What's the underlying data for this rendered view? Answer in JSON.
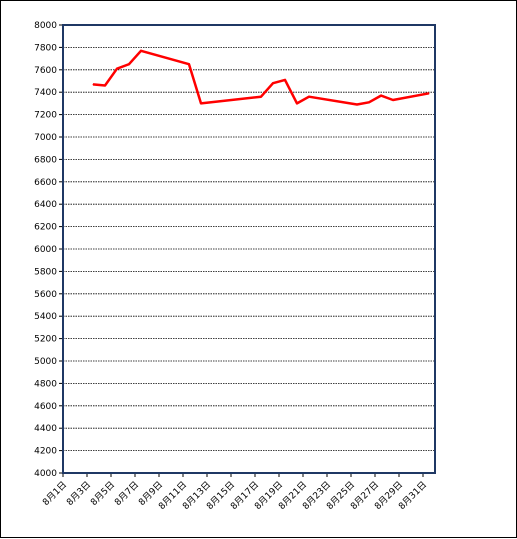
{
  "chart_data": {
    "type": "line",
    "title": "",
    "xlabel": "",
    "ylabel": "",
    "ylim": [
      4000,
      8000
    ],
    "y_ticks": [
      4000,
      4200,
      4400,
      4600,
      4800,
      5000,
      5200,
      5400,
      5600,
      5800,
      6000,
      6200,
      6400,
      6600,
      6800,
      7000,
      7200,
      7400,
      7600,
      7800,
      8000
    ],
    "x_ticks": [
      {
        "day": 1,
        "label": "8月1日"
      },
      {
        "day": 3,
        "label": "8月3日"
      },
      {
        "day": 5,
        "label": "8月5日"
      },
      {
        "day": 7,
        "label": "8月7日"
      },
      {
        "day": 9,
        "label": "8月9日"
      },
      {
        "day": 11,
        "label": "8月11日"
      },
      {
        "day": 13,
        "label": "8月13日"
      },
      {
        "day": 15,
        "label": "8月15日"
      },
      {
        "day": 17,
        "label": "8月17日"
      },
      {
        "day": 19,
        "label": "8月19日"
      },
      {
        "day": 21,
        "label": "8月21日"
      },
      {
        "day": 23,
        "label": "8月23日"
      },
      {
        "day": 25,
        "label": "8月25日"
      },
      {
        "day": 27,
        "label": "8月27日"
      },
      {
        "day": 29,
        "label": "8月29日"
      },
      {
        "day": 31,
        "label": "8月31日"
      }
    ],
    "xlim": [
      1,
      32
    ],
    "grid": true,
    "series": [
      {
        "color": "#ff0000",
        "points": [
          {
            "day": 3.5,
            "value": 7470
          },
          {
            "day": 4.5,
            "value": 7460
          },
          {
            "day": 5.5,
            "value": 7610
          },
          {
            "day": 6.5,
            "value": 7650
          },
          {
            "day": 7.5,
            "value": 7770
          },
          {
            "day": 11.5,
            "value": 7650
          },
          {
            "day": 12.5,
            "value": 7300
          },
          {
            "day": 17.5,
            "value": 7360
          },
          {
            "day": 18.5,
            "value": 7480
          },
          {
            "day": 19.5,
            "value": 7510
          },
          {
            "day": 20.5,
            "value": 7300
          },
          {
            "day": 21.5,
            "value": 7360
          },
          {
            "day": 25.5,
            "value": 7290
          },
          {
            "day": 26.5,
            "value": 7310
          },
          {
            "day": 27.5,
            "value": 7370
          },
          {
            "day": 28.5,
            "value": 7330
          },
          {
            "day": 31.5,
            "value": 7390
          }
        ]
      }
    ],
    "colors": {
      "line": "#ff0000",
      "plot_border": "#1f3864",
      "grid": "#000000",
      "axis": "#000000"
    }
  }
}
